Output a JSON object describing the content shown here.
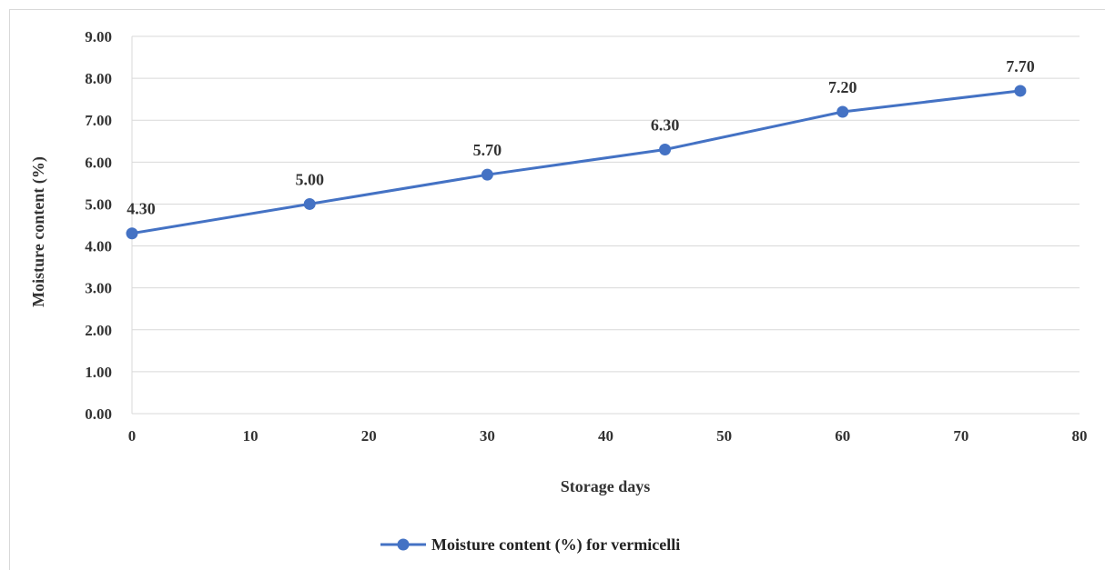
{
  "chart_data": {
    "type": "line",
    "xlabel": "Storage days",
    "ylabel": "Moisture content (%)",
    "xlim": [
      0,
      80
    ],
    "ylim": [
      0,
      9
    ],
    "x_ticks": [
      "0",
      "10",
      "20",
      "30",
      "40",
      "50",
      "60",
      "70",
      "80"
    ],
    "y_ticks": [
      "0.00",
      "1.00",
      "2.00",
      "3.00",
      "4.00",
      "5.00",
      "6.00",
      "7.00",
      "8.00",
      "9.00"
    ],
    "grid": "horizontal",
    "legend_position": "bottom",
    "series": [
      {
        "name": "Moisture content (%) for vermicelli",
        "color": "#4472c4",
        "x": [
          0,
          15,
          30,
          45,
          60,
          75
        ],
        "y": [
          4.3,
          5.0,
          5.7,
          6.3,
          7.2,
          7.7
        ],
        "labels": [
          "4.30",
          "5.00",
          "5.70",
          "6.30",
          "7.20",
          "7.70"
        ]
      }
    ]
  }
}
